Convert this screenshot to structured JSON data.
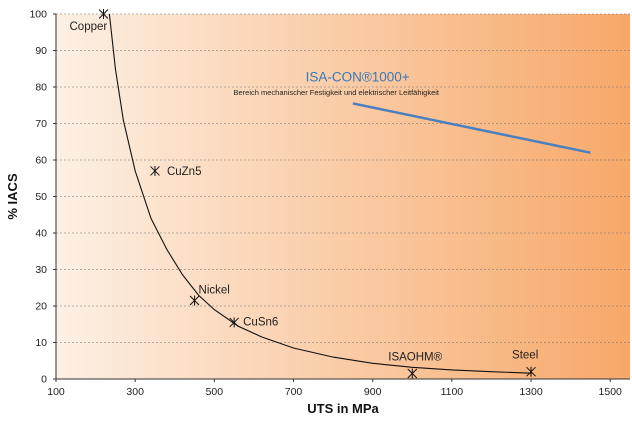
{
  "chart_data": {
    "type": "scatter",
    "xlabel": "UTS in MPa",
    "ylabel": "% IACS",
    "xlim": [
      100,
      1550
    ],
    "ylim": [
      0,
      100
    ],
    "xticks": [
      100,
      300,
      500,
      700,
      900,
      1100,
      1300,
      1500
    ],
    "yticks": [
      0,
      10,
      20,
      30,
      40,
      50,
      60,
      70,
      80,
      90,
      100
    ],
    "grid": "horizontal",
    "background_gradient": [
      "#fdf0e4",
      "#f7a869"
    ],
    "points": [
      {
        "label": "Copper",
        "x": 220,
        "y": 100
      },
      {
        "label": "CuZn5",
        "x": 350,
        "y": 57
      },
      {
        "label": "Nickel",
        "x": 450,
        "y": 21.5
      },
      {
        "label": "CuSn6",
        "x": 550,
        "y": 15.5
      },
      {
        "label": "ISAOHM®",
        "x": 1000,
        "y": 1.5
      },
      {
        "label": "Steel",
        "x": 1300,
        "y": 2
      }
    ],
    "trend_curve": {
      "x": [
        235,
        250,
        270,
        300,
        340,
        380,
        420,
        460,
        500,
        560,
        620,
        700,
        800,
        900,
        1000,
        1100,
        1200,
        1300
      ],
      "y": [
        100,
        85,
        71,
        57,
        44,
        35.5,
        28.5,
        23,
        19,
        14.5,
        11.5,
        8.5,
        6,
        4.3,
        3.2,
        2.5,
        2,
        1.6
      ]
    },
    "isa_con_line": {
      "label": "ISA-CON®1000+",
      "sublabel": "Bereich mechanischer Festigkeit und elektrischer Leitfähigkeit",
      "color": "#4a7fc0",
      "x": [
        850,
        1450
      ],
      "y": [
        75.5,
        62
      ]
    }
  }
}
